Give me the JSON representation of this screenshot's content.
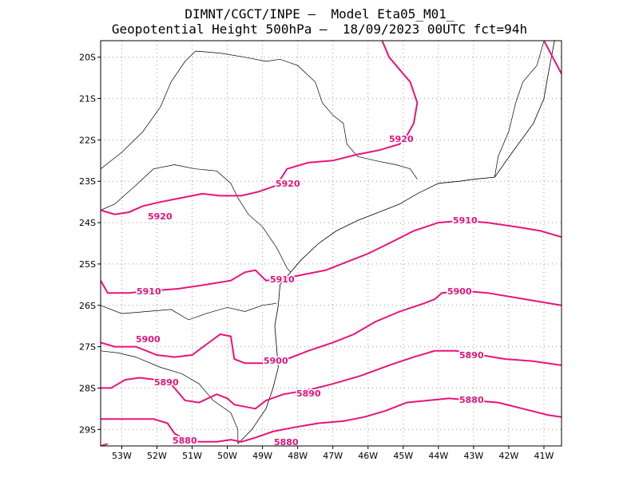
{
  "title": {
    "line1": "DIMNT/CGCT/INPE –  Model Eta05_M01_",
    "line2": "Geopotential Height 500hPa –  18/09/2023 00UTC fct=94h"
  },
  "colors": {
    "contour": "#e8137c",
    "coast": "#000000",
    "grid": "#9a9a9a"
  },
  "axes": {
    "lon_min": -53.6,
    "lon_max": -40.5,
    "lat_min": -29.4,
    "lat_max": -19.6,
    "x_ticks": [
      "53W",
      "52W",
      "51W",
      "50W",
      "49W",
      "48W",
      "47W",
      "46W",
      "45W",
      "44W",
      "43W",
      "42W",
      "41W"
    ],
    "y_ticks": [
      "20S",
      "21S",
      "22S",
      "23S",
      "24S",
      "25S",
      "26S",
      "27S",
      "28S",
      "29S"
    ]
  },
  "contours": [
    {
      "value": 5920,
      "labels": [
        "5920",
        "5920",
        "5920"
      ],
      "lines": [
        [
          [
            -53.6,
            -23.7
          ],
          [
            -53.2,
            -23.8
          ],
          [
            -52.8,
            -23.75
          ],
          [
            -52.4,
            -23.6
          ],
          [
            -51.9,
            -23.5
          ],
          [
            -51.3,
            -23.4
          ],
          [
            -50.7,
            -23.3
          ],
          [
            -50.2,
            -23.35
          ],
          [
            -49.6,
            -23.35
          ],
          [
            -49.1,
            -23.25
          ],
          [
            -48.6,
            -23.1
          ],
          [
            -48.3,
            -22.7
          ],
          [
            -47.7,
            -22.55
          ],
          [
            -47.0,
            -22.5
          ],
          [
            -46.3,
            -22.35
          ],
          [
            -45.7,
            -22.25
          ],
          [
            -45.1,
            -22.1
          ],
          [
            -44.9,
            -21.9
          ],
          [
            -44.7,
            -21.6
          ],
          [
            -44.6,
            -21.1
          ],
          [
            -44.8,
            -20.6
          ],
          [
            -45.1,
            -20.3
          ],
          [
            -45.4,
            -20.0
          ],
          [
            -45.6,
            -19.6
          ]
        ],
        [
          [
            -41.0,
            -19.6
          ],
          [
            -40.75,
            -20.0
          ],
          [
            -40.5,
            -20.4
          ]
        ]
      ]
    },
    {
      "value": 5910,
      "labels": [
        "5910",
        "5910",
        "5910"
      ],
      "lines": [
        [
          [
            -53.6,
            -25.4
          ],
          [
            -53.4,
            -25.7
          ],
          [
            -52.8,
            -25.7
          ],
          [
            -52.2,
            -25.65
          ],
          [
            -51.4,
            -25.6
          ],
          [
            -50.6,
            -25.5
          ],
          [
            -49.9,
            -25.4
          ],
          [
            -49.5,
            -25.2
          ],
          [
            -49.2,
            -25.15
          ],
          [
            -48.9,
            -25.4
          ],
          [
            -48.4,
            -25.35
          ],
          [
            -47.8,
            -25.25
          ],
          [
            -47.2,
            -25.15
          ],
          [
            -46.6,
            -24.95
          ],
          [
            -46.0,
            -24.75
          ],
          [
            -45.4,
            -24.5
          ],
          [
            -44.7,
            -24.2
          ],
          [
            -44.0,
            -24.0
          ],
          [
            -43.3,
            -23.95
          ],
          [
            -42.6,
            -24.0
          ],
          [
            -41.8,
            -24.1
          ],
          [
            -41.1,
            -24.2
          ],
          [
            -40.5,
            -24.35
          ]
        ]
      ]
    },
    {
      "value": 5900,
      "labels": [
        "5900",
        "5900",
        "5900"
      ],
      "lines": [
        [
          [
            -53.6,
            -26.9
          ],
          [
            -53.2,
            -27.0
          ],
          [
            -52.6,
            -27.0
          ],
          [
            -52.0,
            -27.2
          ],
          [
            -51.5,
            -27.25
          ],
          [
            -51.0,
            -27.2
          ],
          [
            -50.6,
            -26.95
          ],
          [
            -50.2,
            -26.7
          ],
          [
            -49.9,
            -26.75
          ],
          [
            -49.8,
            -27.3
          ],
          [
            -49.5,
            -27.4
          ],
          [
            -48.9,
            -27.4
          ],
          [
            -48.3,
            -27.3
          ],
          [
            -47.7,
            -27.1
          ],
          [
            -47.0,
            -26.9
          ],
          [
            -46.4,
            -26.7
          ],
          [
            -45.8,
            -26.4
          ],
          [
            -45.1,
            -26.15
          ],
          [
            -44.4,
            -25.95
          ],
          [
            -44.1,
            -25.85
          ],
          [
            -43.9,
            -25.7
          ],
          [
            -43.3,
            -25.65
          ],
          [
            -42.6,
            -25.7
          ],
          [
            -41.9,
            -25.8
          ],
          [
            -41.2,
            -25.9
          ],
          [
            -40.5,
            -26.0
          ]
        ]
      ]
    },
    {
      "value": 5890,
      "labels": [
        "5890",
        "5890",
        "5890"
      ],
      "lines": [
        [
          [
            -53.6,
            -28.0
          ],
          [
            -53.3,
            -28.0
          ],
          [
            -53.1,
            -27.9
          ],
          [
            -52.9,
            -27.8
          ],
          [
            -52.5,
            -27.75
          ],
          [
            -52.0,
            -27.8
          ],
          [
            -51.6,
            -27.9
          ],
          [
            -51.4,
            -28.1
          ],
          [
            -51.2,
            -28.3
          ],
          [
            -50.8,
            -28.35
          ],
          [
            -50.3,
            -28.15
          ],
          [
            -50.0,
            -28.25
          ],
          [
            -49.8,
            -28.4
          ],
          [
            -49.5,
            -28.45
          ],
          [
            -49.2,
            -28.5
          ],
          [
            -48.9,
            -28.3
          ],
          [
            -48.4,
            -28.15
          ],
          [
            -47.7,
            -28.05
          ],
          [
            -47.0,
            -27.9
          ],
          [
            -46.2,
            -27.7
          ],
          [
            -45.4,
            -27.45
          ],
          [
            -44.7,
            -27.25
          ],
          [
            -44.1,
            -27.1
          ],
          [
            -43.5,
            -27.1
          ],
          [
            -42.8,
            -27.2
          ],
          [
            -42.1,
            -27.3
          ],
          [
            -41.3,
            -27.35
          ],
          [
            -40.5,
            -27.45
          ]
        ]
      ]
    },
    {
      "value": 5880,
      "labels": [
        "5880",
        "5880",
        "5880"
      ],
      "lines": [
        [
          [
            -53.6,
            -28.75
          ],
          [
            -53.1,
            -28.75
          ],
          [
            -52.6,
            -28.75
          ],
          [
            -52.1,
            -28.75
          ],
          [
            -51.7,
            -28.85
          ],
          [
            -51.5,
            -29.1
          ],
          [
            -51.2,
            -29.25
          ],
          [
            -50.8,
            -29.3
          ],
          [
            -50.3,
            -29.3
          ],
          [
            -49.9,
            -29.25
          ],
          [
            -49.6,
            -29.3
          ],
          [
            -49.2,
            -29.2
          ],
          [
            -48.7,
            -29.05
          ],
          [
            -48.1,
            -28.95
          ],
          [
            -47.4,
            -28.85
          ],
          [
            -46.7,
            -28.8
          ],
          [
            -46.1,
            -28.7
          ],
          [
            -45.5,
            -28.55
          ],
          [
            -44.9,
            -28.35
          ],
          [
            -44.3,
            -28.3
          ],
          [
            -43.7,
            -28.25
          ],
          [
            -43.0,
            -28.3
          ],
          [
            -42.3,
            -28.35
          ],
          [
            -41.6,
            -28.5
          ],
          [
            -40.9,
            -28.65
          ],
          [
            -40.5,
            -28.7
          ]
        ],
        [
          [
            -53.6,
            -29.4
          ],
          [
            -53.4,
            -29.35
          ]
        ]
      ]
    }
  ],
  "coastline": [
    [
      [
        -40.7,
        -19.6
      ],
      [
        -40.9,
        -20.5
      ],
      [
        -41.0,
        -21.0
      ],
      [
        -41.3,
        -21.6
      ],
      [
        -41.9,
        -22.3
      ],
      [
        -42.4,
        -22.9
      ],
      [
        -43.0,
        -22.95
      ],
      [
        -43.4,
        -23.0
      ],
      [
        -44.0,
        -23.05
      ],
      [
        -44.6,
        -23.3
      ],
      [
        -45.1,
        -23.55
      ],
      [
        -45.7,
        -23.75
      ],
      [
        -46.3,
        -23.95
      ],
      [
        -46.9,
        -24.2
      ],
      [
        -47.4,
        -24.5
      ],
      [
        -47.9,
        -24.9
      ],
      [
        -48.2,
        -25.2
      ],
      [
        -48.5,
        -25.5
      ],
      [
        -48.55,
        -26.0
      ],
      [
        -48.65,
        -26.5
      ],
      [
        -48.6,
        -27.0
      ],
      [
        -48.55,
        -27.5
      ],
      [
        -48.7,
        -28.0
      ],
      [
        -48.9,
        -28.5
      ],
      [
        -49.3,
        -29.0
      ],
      [
        -49.7,
        -29.35
      ]
    ]
  ],
  "borders": [
    [
      [
        -53.6,
        -22.7
      ],
      [
        -53.0,
        -22.3
      ],
      [
        -52.4,
        -21.8
      ],
      [
        -51.9,
        -21.2
      ],
      [
        -51.6,
        -20.6
      ],
      [
        -51.2,
        -20.1
      ],
      [
        -50.9,
        -19.85
      ],
      [
        -50.2,
        -19.9
      ],
      [
        -49.5,
        -20.0
      ],
      [
        -48.9,
        -20.1
      ],
      [
        -48.5,
        -20.05
      ],
      [
        -48.0,
        -20.2
      ],
      [
        -47.5,
        -20.6
      ],
      [
        -47.3,
        -21.1
      ],
      [
        -47.0,
        -21.4
      ],
      [
        -46.7,
        -21.6
      ],
      [
        -46.6,
        -22.1
      ],
      [
        -46.3,
        -22.4
      ],
      [
        -45.8,
        -22.5
      ],
      [
        -45.2,
        -22.6
      ],
      [
        -44.8,
        -22.7
      ],
      [
        -44.6,
        -22.95
      ]
    ],
    [
      [
        -53.6,
        -23.7
      ],
      [
        -53.2,
        -23.55
      ],
      [
        -52.6,
        -23.1
      ],
      [
        -52.1,
        -22.7
      ],
      [
        -51.5,
        -22.6
      ],
      [
        -50.9,
        -22.7
      ],
      [
        -50.3,
        -22.75
      ],
      [
        -49.9,
        -23.05
      ],
      [
        -49.7,
        -23.4
      ],
      [
        -49.4,
        -23.8
      ],
      [
        -49.0,
        -24.1
      ],
      [
        -48.6,
        -24.6
      ],
      [
        -48.3,
        -25.1
      ],
      [
        -48.2,
        -25.2
      ]
    ],
    [
      [
        -53.6,
        -26.0
      ],
      [
        -53.0,
        -26.2
      ],
      [
        -52.3,
        -26.15
      ],
      [
        -51.6,
        -26.1
      ],
      [
        -51.1,
        -26.35
      ],
      [
        -50.6,
        -26.2
      ],
      [
        -50.0,
        -26.05
      ],
      [
        -49.5,
        -26.15
      ],
      [
        -49.0,
        -26.0
      ],
      [
        -48.6,
        -25.95
      ]
    ],
    [
      [
        -53.6,
        -27.1
      ],
      [
        -53.1,
        -27.15
      ],
      [
        -52.6,
        -27.25
      ],
      [
        -51.9,
        -27.5
      ],
      [
        -51.3,
        -27.65
      ],
      [
        -50.8,
        -27.9
      ],
      [
        -50.4,
        -28.3
      ],
      [
        -49.9,
        -28.6
      ],
      [
        -49.7,
        -29.0
      ],
      [
        -49.7,
        -29.35
      ]
    ],
    [
      [
        -42.4,
        -22.9
      ],
      [
        -42.3,
        -22.4
      ],
      [
        -42.0,
        -21.8
      ],
      [
        -41.8,
        -21.1
      ],
      [
        -41.6,
        -20.6
      ],
      [
        -41.2,
        -20.2
      ],
      [
        -41.0,
        -19.6
      ]
    ]
  ]
}
